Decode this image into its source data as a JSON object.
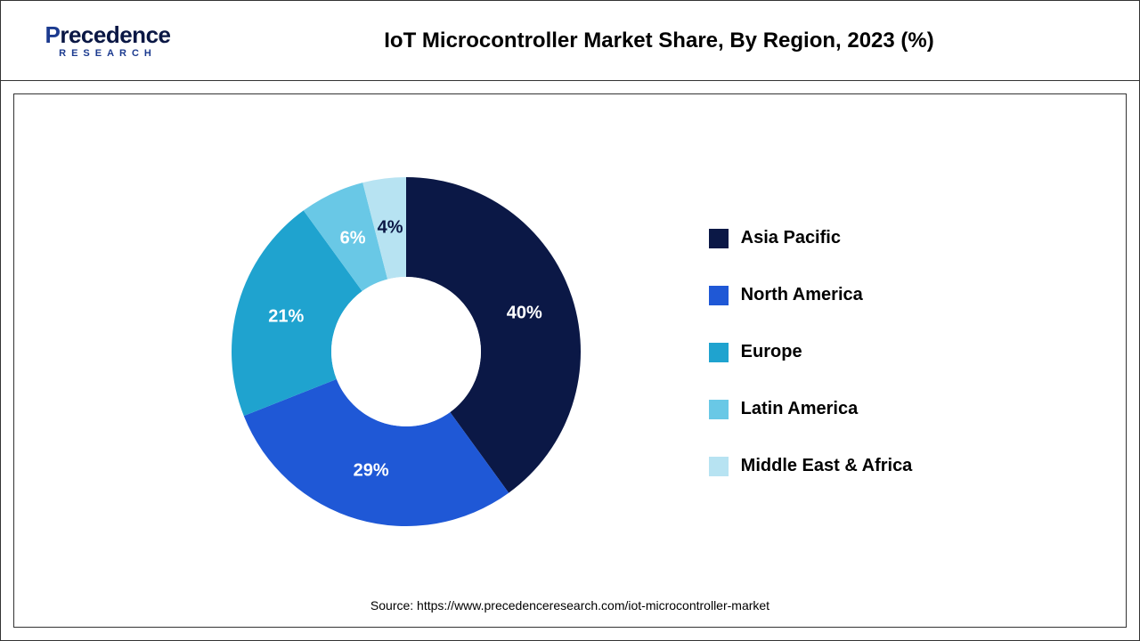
{
  "brand": {
    "name_pre": "P",
    "name_rest": "recedence",
    "sub": "RESEARCH"
  },
  "chart": {
    "type": "donut",
    "title": "IoT Microcontroller Market Share, By Region, 2023 (%)",
    "inner_radius_pct": 42,
    "outer_radius_pct": 100,
    "start_angle_deg": 0,
    "background_color": "#ffffff",
    "slice_gap": 0,
    "label_fontsize": 20,
    "label_color": "#ffffff",
    "legend_fontsize": 20,
    "legend_position": "right",
    "segments": [
      {
        "label": "Asia Pacific",
        "value": 40,
        "display": "40%",
        "color": "#0b1846"
      },
      {
        "label": "North America",
        "value": 29,
        "display": "29%",
        "color": "#1f58d6"
      },
      {
        "label": "Europe",
        "value": 21,
        "display": "21%",
        "color": "#1fa3cf"
      },
      {
        "label": "Latin America",
        "value": 6,
        "display": "6%",
        "color": "#69c8e6"
      },
      {
        "label": "Middle East & Africa",
        "value": 4,
        "display": "4%",
        "color": "#b7e3f2"
      }
    ]
  },
  "source": "Source: https://www.precedenceresearch.com/iot-microcontroller-market"
}
